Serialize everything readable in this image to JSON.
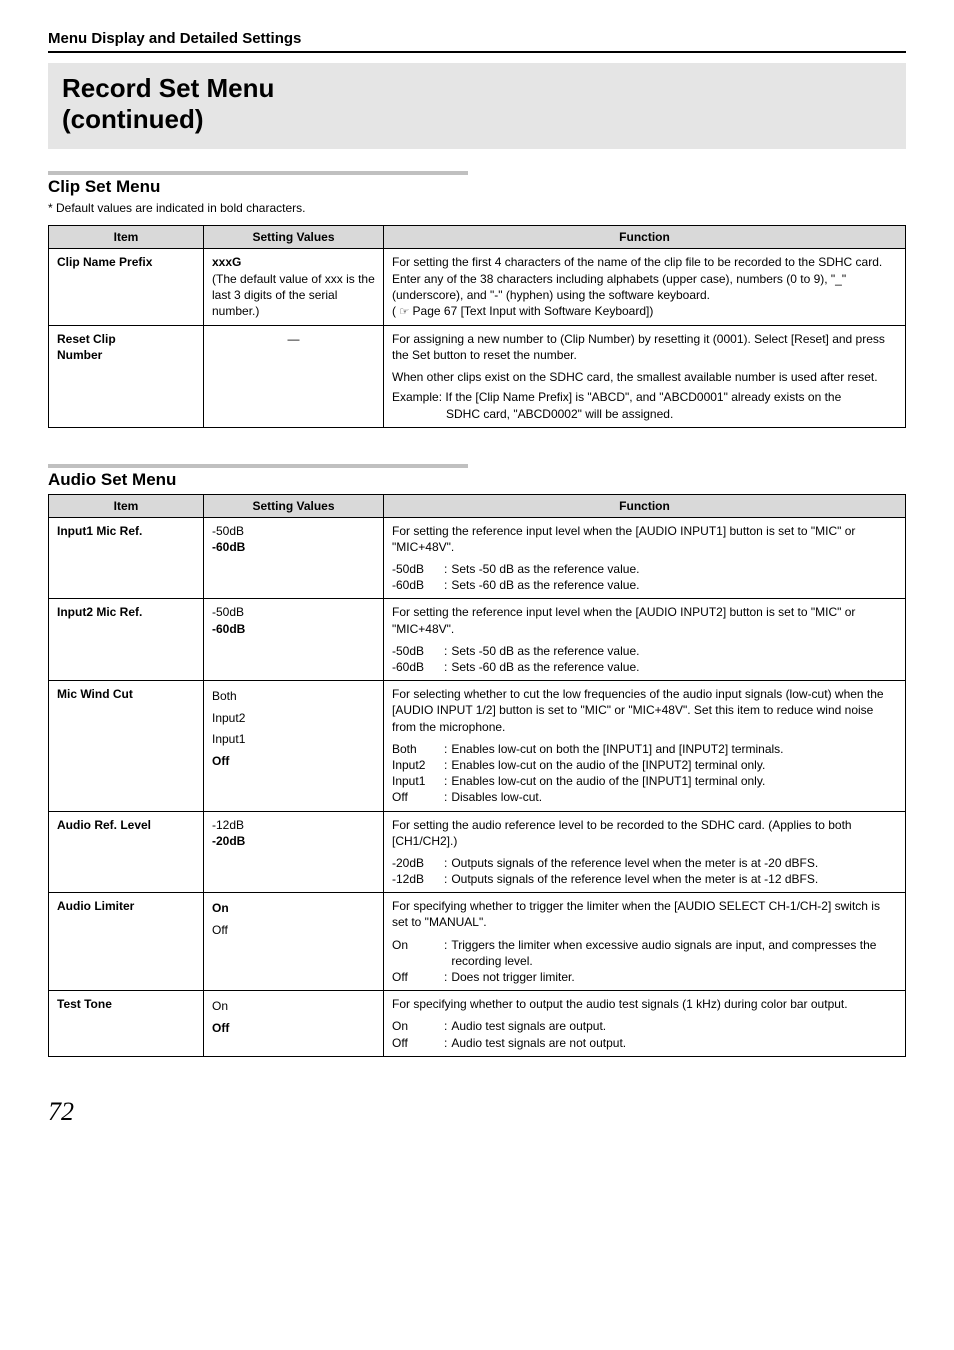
{
  "header": {
    "section": "Menu Display and Detailed Settings",
    "title_line1": "Record Set Menu",
    "title_line2": "(continued)"
  },
  "clip_set": {
    "heading": "Clip Set Menu",
    "note": "* Default values are indicated in bold characters.",
    "columns": {
      "item": "Item",
      "setting": "Setting Values",
      "function": "Function"
    },
    "rows": [
      {
        "item": "Clip Name Prefix",
        "setting_bold": "xxxG",
        "setting_rest": "(The default value of xxx is the last 3 digits of the serial number.)",
        "func_p1": "For setting the first 4 characters of the name of the clip file to be recorded to the SDHC card.",
        "func_p2": "Enter any of the 38 characters including alphabets (upper case), numbers (0 to 9), \"_\" (underscore), and \"-\" (hyphen) using the software keyboard.",
        "func_p3_prefix": "( ",
        "func_p3_icon": "☞",
        "func_p3_text": " Page 67 [Text Input with Software Keyboard])"
      },
      {
        "item_line1": "Reset Clip",
        "item_line2": "Number",
        "setting_dash": "—",
        "func_p1": "For assigning a new number to (Clip Number) by resetting it (0001). Select [Reset] and press the Set button to reset the number.",
        "func_p2": "When other clips exist on the SDHC card, the smallest available number is used after reset.",
        "func_ex_label": "Example:",
        "func_ex_body1": "If the [Clip Name Prefix] is \"ABCD\", and \"ABCD0001\" already exists on the",
        "func_ex_body2": "SDHC card, \"ABCD0002\" will be assigned."
      }
    ]
  },
  "audio_set": {
    "heading": "Audio Set Menu",
    "columns": {
      "item": "Item",
      "setting": "Setting Values",
      "function": "Function"
    },
    "rows": {
      "input1": {
        "item": "Input1 Mic Ref.",
        "s1": "-50dB",
        "s2_bold": "-60dB",
        "f_intro": "For setting the reference input level when the [AUDIO INPUT1] button is set to \"MIC\" or \"MIC+48V\".",
        "opts": [
          {
            "k": "-50dB",
            "v": "Sets -50 dB as the reference value."
          },
          {
            "k": "-60dB",
            "v": "Sets -60 dB as the reference value."
          }
        ]
      },
      "input2": {
        "item": "Input2 Mic Ref.",
        "s1": "-50dB",
        "s2_bold": "-60dB",
        "f_intro": "For setting the reference input level when the [AUDIO INPUT2] button is set to \"MIC\" or \"MIC+48V\".",
        "opts": [
          {
            "k": "-50dB",
            "v": "Sets -50 dB as the reference value."
          },
          {
            "k": "-60dB",
            "v": "Sets -60 dB as the reference value."
          }
        ]
      },
      "micwind": {
        "item": "Mic Wind Cut",
        "s1": "Both",
        "s2": "Input2",
        "s3": "Input1",
        "s4_bold": "Off",
        "f_intro": "For selecting whether to cut the low frequencies of the audio input signals (low-cut) when the [AUDIO INPUT 1/2] button is set to \"MIC\" or \"MIC+48V\". Set this item to reduce wind noise from the microphone.",
        "opts": [
          {
            "k": "Both",
            "v": "Enables low-cut on both the [INPUT1] and [INPUT2] terminals."
          },
          {
            "k": "Input2",
            "v": "Enables low-cut on the audio of the [INPUT2] terminal only."
          },
          {
            "k": "Input1",
            "v": "Enables low-cut on the audio of the [INPUT1] terminal only."
          },
          {
            "k": "Off",
            "v": "Disables low-cut."
          }
        ]
      },
      "audioref": {
        "item": "Audio Ref. Level",
        "s1": "-12dB",
        "s2_bold": "-20dB",
        "f_intro": "For setting the audio reference level to be recorded to the SDHC card. (Applies to both [CH1/CH2].)",
        "opts": [
          {
            "k": "-20dB",
            "v": "Outputs signals of the reference level when the meter is at -20 dBFS."
          },
          {
            "k": "-12dB",
            "v": "Outputs signals of the reference level when the meter is at -12 dBFS."
          }
        ]
      },
      "limiter": {
        "item": "Audio Limiter",
        "s1_bold": "On",
        "s2": "Off",
        "f_intro": "For specifying whether to trigger the limiter when the [AUDIO SELECT CH-1/CH-2] switch is set to \"MANUAL\".",
        "opts": [
          {
            "k": "On",
            "v": "Triggers the limiter when excessive audio signals are input, and compresses the recording level."
          },
          {
            "k": "Off",
            "v": "Does not trigger limiter."
          }
        ]
      },
      "testtone": {
        "item": "Test Tone",
        "s1": "On",
        "s2_bold": "Off",
        "f_intro": "For specifying whether to output the audio test signals (1 kHz) during color bar output.",
        "opts": [
          {
            "k": "On",
            "v": "Audio test signals are output."
          },
          {
            "k": "Off",
            "v": "Audio test signals are not output."
          }
        ]
      }
    }
  },
  "page_number": "72",
  "colors": {
    "band_bg": "#e5e5e5",
    "rule_gray": "#c0c0c0",
    "th_bg": "#d9d9d9",
    "border": "#000000",
    "text": "#000000"
  }
}
